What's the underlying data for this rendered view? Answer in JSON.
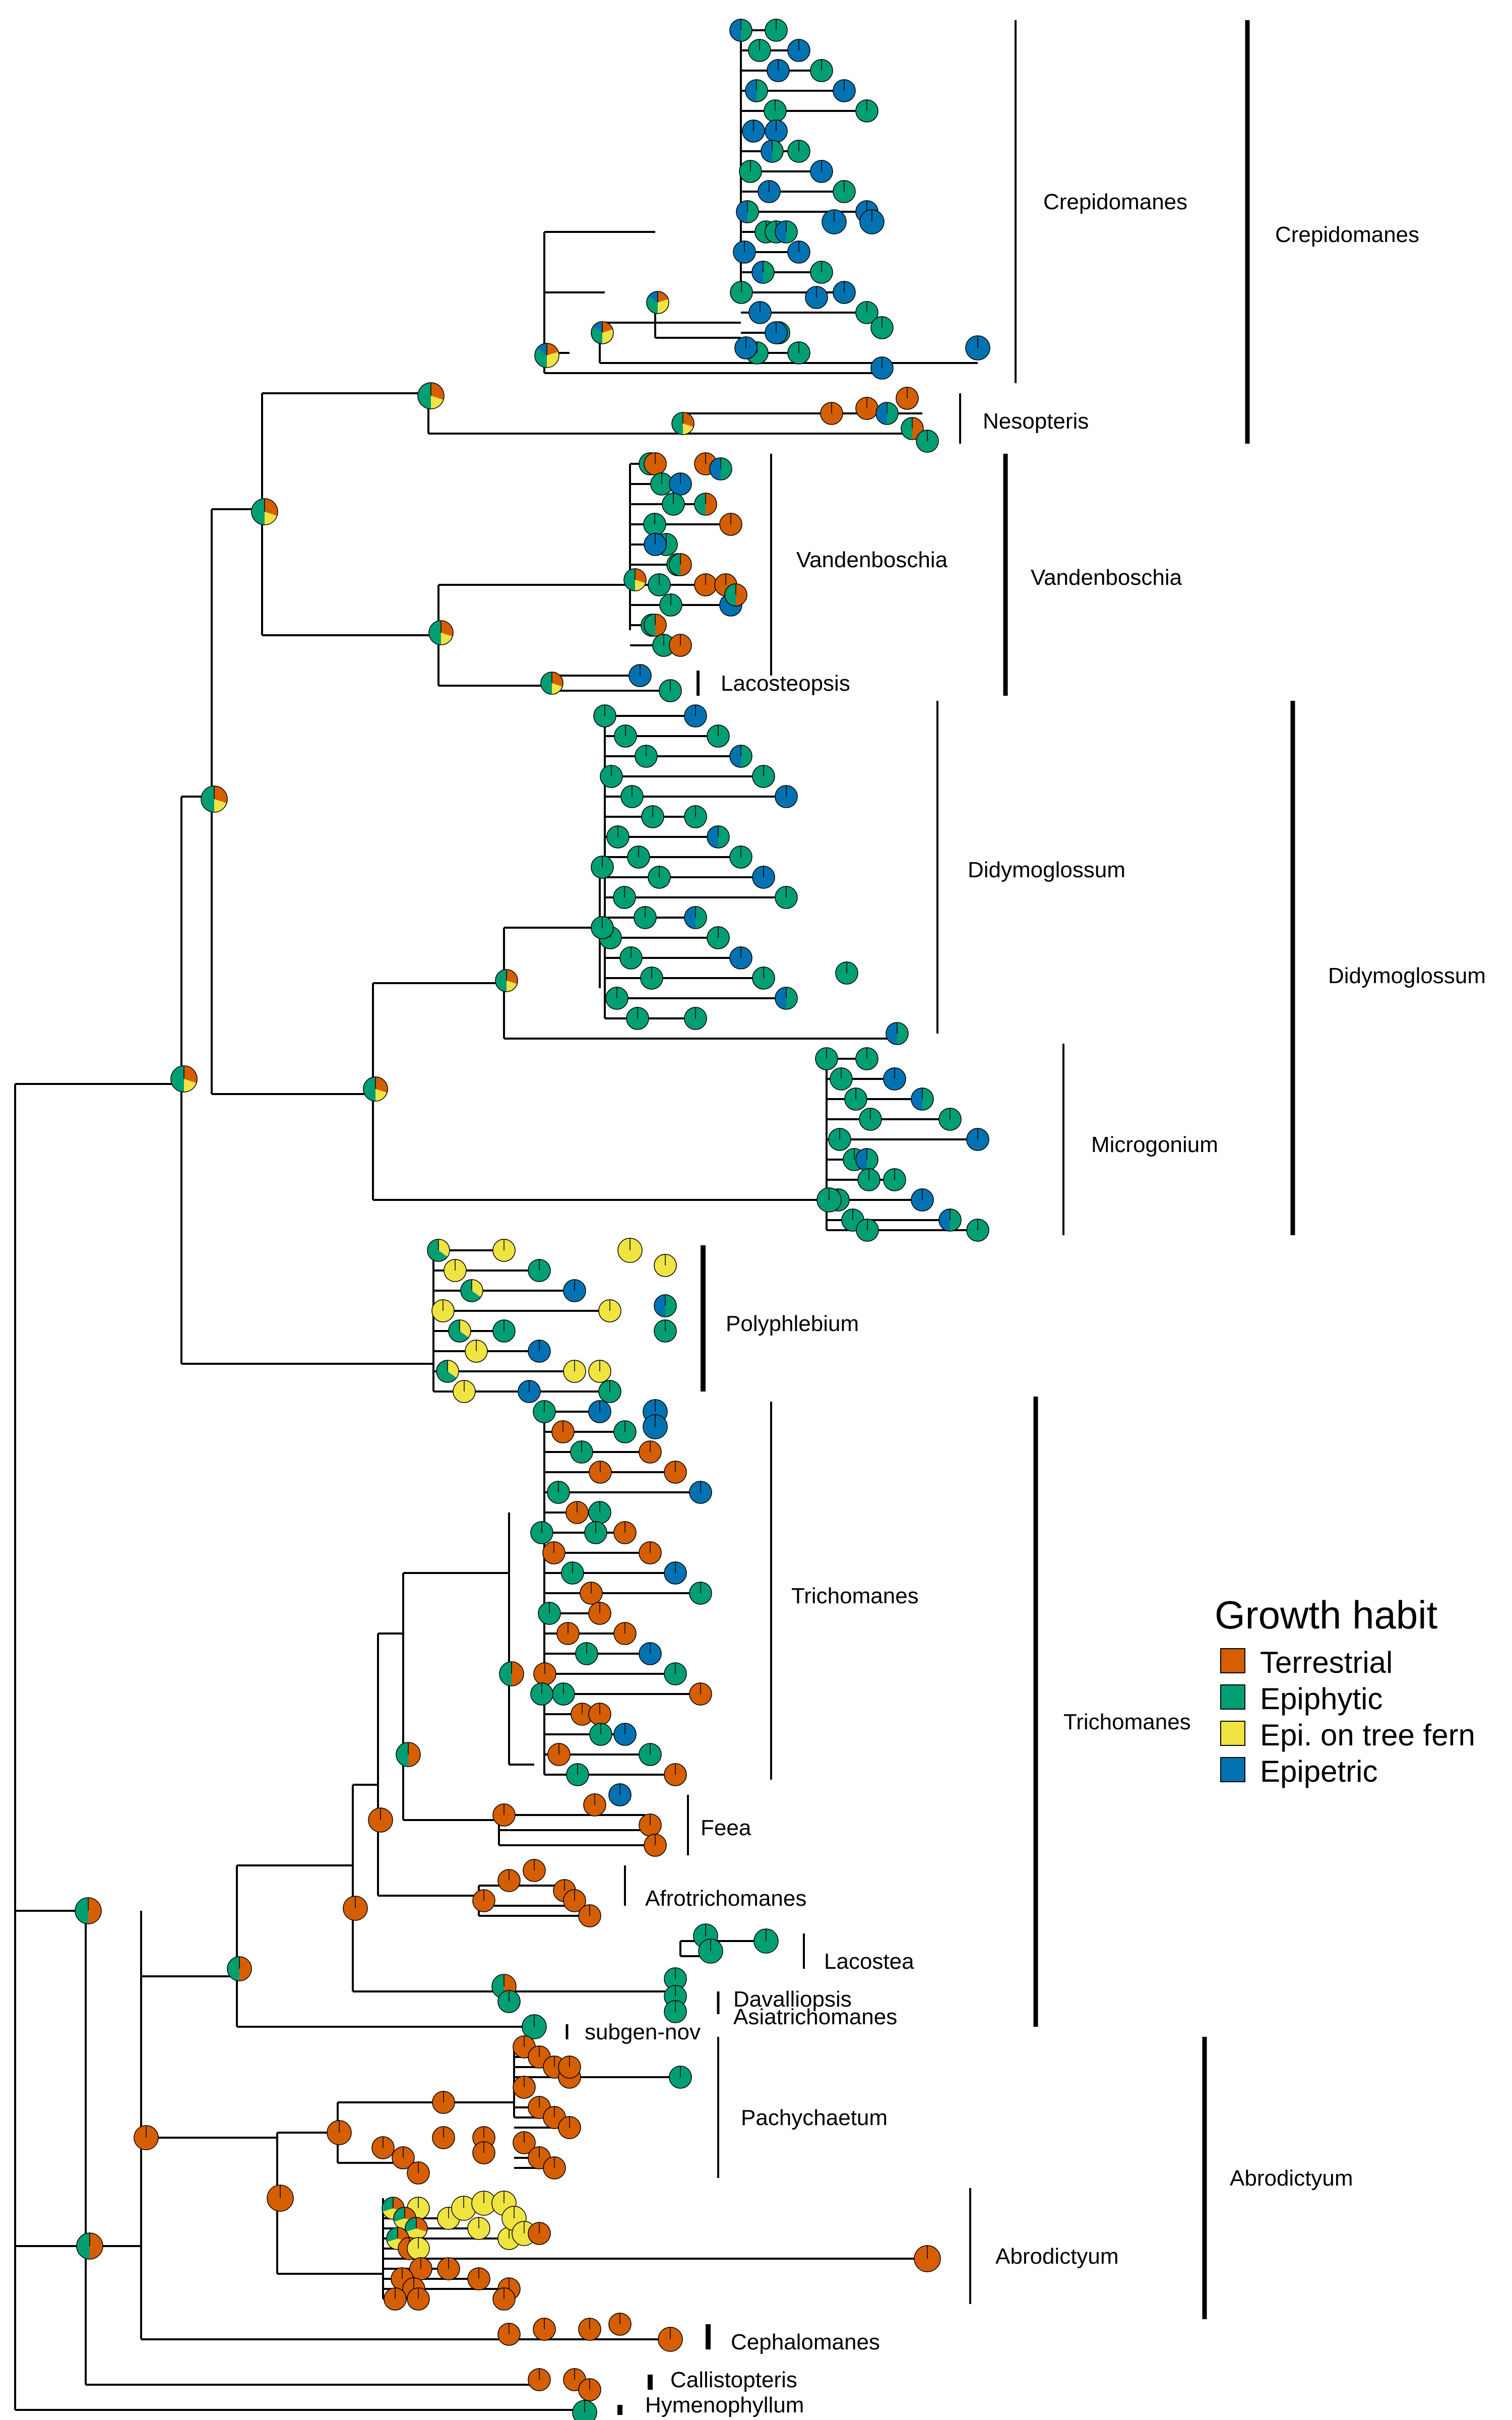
{
  "colors": {
    "Terrestrial": "#D55E00",
    "Epiphytic": "#009E73",
    "Epi. on tree fern": "#F0E442",
    "Epipetric": "#0072B2",
    "branch": "#000000"
  },
  "legend": {
    "title": "Growth habit",
    "items": [
      {
        "label": "Terrestrial",
        "color": "#D55E00"
      },
      {
        "label": "Epiphytic",
        "color": "#009E73"
      },
      {
        "label": "Epi. on tree fern",
        "color": "#F0E442"
      },
      {
        "label": "Epipetric",
        "color": "#0072B2"
      }
    ]
  },
  "clades_inner": [
    "Crepidomanes",
    "Nesopteris",
    "Vandenboschia",
    "Lacosteopsis",
    "Didymoglossum",
    "Microgonium",
    "Polyphlebium",
    "Trichomanes",
    "Feea",
    "Afrotrichomanes",
    "Lacostea",
    "Davalliopsis",
    "Asiatrichomanes",
    "subgen-nov",
    "Pachychaetum",
    "Abrodictyum",
    "Cephalomanes",
    "Callistopteris",
    "Hymenophyllum"
  ],
  "clades_outer": [
    "Crepidomanes",
    "Vandenboschia",
    "Didymoglossum",
    "Trichomanes",
    "Abrodictyum"
  ]
}
